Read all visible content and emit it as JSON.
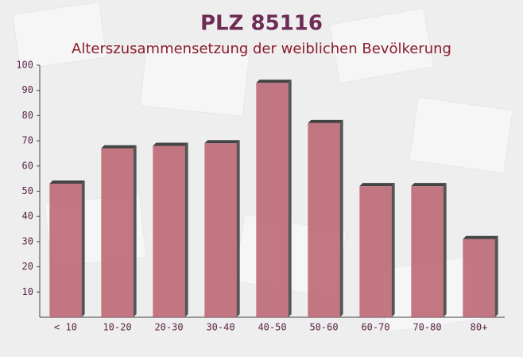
{
  "chart_data": {
    "type": "bar",
    "title": "PLZ 85116",
    "subtitle": "Alterszusammensetzung der weiblichen Bevölkerung",
    "categories": [
      "< 10",
      "10-20",
      "20-30",
      "30-40",
      "40-50",
      "50-60",
      "60-70",
      "70-80",
      "80+"
    ],
    "values": [
      53,
      67,
      68,
      69,
      93,
      77,
      52,
      52,
      31
    ],
    "color": "#b9606e",
    "ylim": [
      0,
      100
    ],
    "yticks": [
      10,
      20,
      30,
      40,
      50,
      60,
      70,
      80,
      90,
      100
    ],
    "grid": false
  }
}
